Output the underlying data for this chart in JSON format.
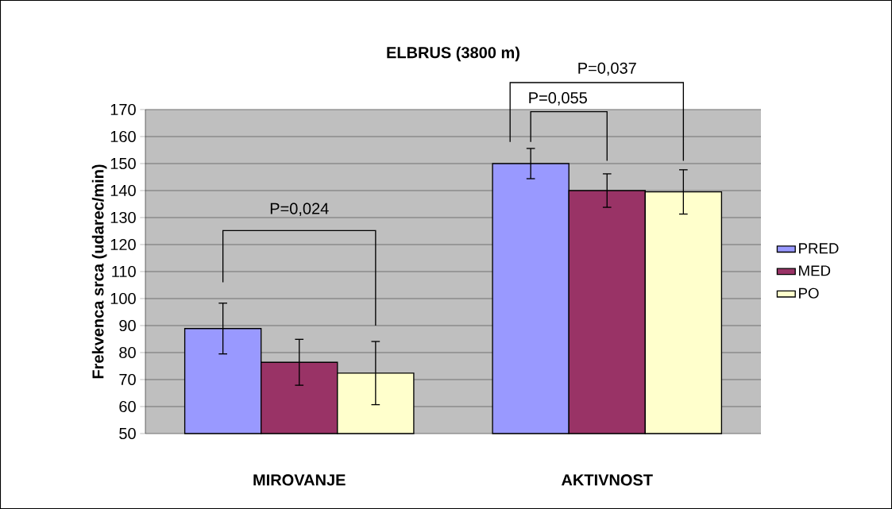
{
  "chart_data": {
    "type": "bar",
    "title": "ELBRUS (3800 m)",
    "ylabel": "Frekvenca srca (udarec/min)",
    "categories": [
      "MIROVANJE",
      "AKTIVNOST"
    ],
    "series": [
      {
        "name": "PRED",
        "color": "#9999ff",
        "values": [
          88.9,
          150.0
        ],
        "errors": [
          9.4,
          5.6
        ]
      },
      {
        "name": "MED",
        "color": "#993366",
        "values": [
          76.4,
          140.0
        ],
        "errors": [
          8.5,
          6.2
        ]
      },
      {
        "name": "PO",
        "color": "#ffffcc",
        "values": [
          72.4,
          139.5
        ],
        "errors": [
          11.7,
          8.2
        ]
      }
    ],
    "ylim": [
      50,
      170
    ],
    "yticks": [
      50,
      60,
      70,
      80,
      90,
      100,
      110,
      120,
      130,
      140,
      150,
      160,
      170
    ],
    "grid": "y",
    "legend": "right",
    "annotations": [
      "P=0,024",
      "P=0,055",
      "P=0,037"
    ]
  }
}
